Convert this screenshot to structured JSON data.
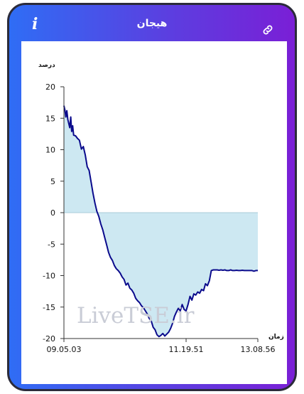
{
  "header": {
    "title": "هیجان"
  },
  "icons": {
    "info": "info-icon",
    "link": "link-icon",
    "info_glyph": "i"
  },
  "watermark": "LiveTSE.ir",
  "colors": {
    "gradient_start": "#2f6df5",
    "gradient_end": "#7a1fd6",
    "line": "#0a0a8c",
    "fill": "#cde8f2"
  },
  "chart_data": {
    "type": "area",
    "ylabel": "درصد",
    "xlabel": "زمان",
    "ylim": [
      -20,
      20
    ],
    "yticks": [
      20,
      15,
      10,
      5,
      0,
      -5,
      -10,
      -15,
      -20
    ],
    "xlim": [
      0,
      100
    ],
    "xtick_labels": [
      {
        "x": 0,
        "label": "09.05.03"
      },
      {
        "x": 63,
        "label": "11.19.51"
      },
      {
        "x": 100,
        "label": "13.08.56"
      }
    ],
    "grid": false,
    "series": [
      {
        "x": [
          0,
          0.5,
          1,
          1.5,
          2,
          3,
          3.5,
          4,
          4.5,
          5,
          6,
          7,
          8,
          9,
          10,
          11,
          12,
          13,
          14,
          15,
          16,
          17,
          18,
          19,
          20,
          21,
          22,
          23,
          24,
          25,
          26,
          27,
          28,
          29,
          30,
          31,
          32,
          33,
          34,
          35,
          36,
          37,
          38,
          39,
          40,
          41,
          42,
          43,
          44,
          45,
          46,
          47,
          48,
          49,
          50,
          51,
          52,
          53,
          54,
          55,
          56,
          57,
          58,
          59,
          60,
          61,
          62,
          63,
          64,
          65,
          66,
          67,
          68,
          69,
          70,
          71,
          72,
          73,
          74,
          75,
          76,
          77,
          78,
          79,
          80,
          81,
          82,
          83,
          84,
          85,
          86,
          87,
          88,
          89,
          90,
          91,
          92,
          93,
          94,
          95,
          96,
          97,
          98,
          99,
          100
        ],
        "values": [
          17,
          16.3,
          15.2,
          16.2,
          14.8,
          13.5,
          15.2,
          12.9,
          13.8,
          12.3,
          12.2,
          11.8,
          11.5,
          10.1,
          10.5,
          9.2,
          7.3,
          6.7,
          4.9,
          3.1,
          1.5,
          0.2,
          -0.6,
          -1.8,
          -2.7,
          -3.9,
          -5.1,
          -6.3,
          -7.1,
          -7.6,
          -8.4,
          -8.9,
          -9.2,
          -9.6,
          -10.2,
          -10.6,
          -11.5,
          -11.2,
          -12.0,
          -12.3,
          -12.8,
          -13.6,
          -14.0,
          -14.3,
          -14.8,
          -15.1,
          -15.6,
          -16.1,
          -16.8,
          -17.2,
          -18.2,
          -18.6,
          -19.4,
          -19.7,
          -19.5,
          -19.2,
          -19.6,
          -19.3,
          -19.0,
          -18.4,
          -17.6,
          -16.5,
          -15.8,
          -15.2,
          -15.6,
          -14.6,
          -15.4,
          -15.6,
          -14.6,
          -13.3,
          -13.9,
          -12.9,
          -13.1,
          -12.6,
          -12.8,
          -12.2,
          -12.4,
          -11.3,
          -11.6,
          -10.8,
          -9.2,
          -9.1,
          -9.1,
          -9.1,
          -9.15,
          -9.1,
          -9.15,
          -9.1,
          -9.2,
          -9.2,
          -9.1,
          -9.2,
          -9.2,
          -9.15,
          -9.2,
          -9.2,
          -9.15,
          -9.2,
          -9.2,
          -9.2,
          -9.2,
          -9.2,
          -9.3,
          -9.2,
          -9.2
        ]
      }
    ]
  }
}
